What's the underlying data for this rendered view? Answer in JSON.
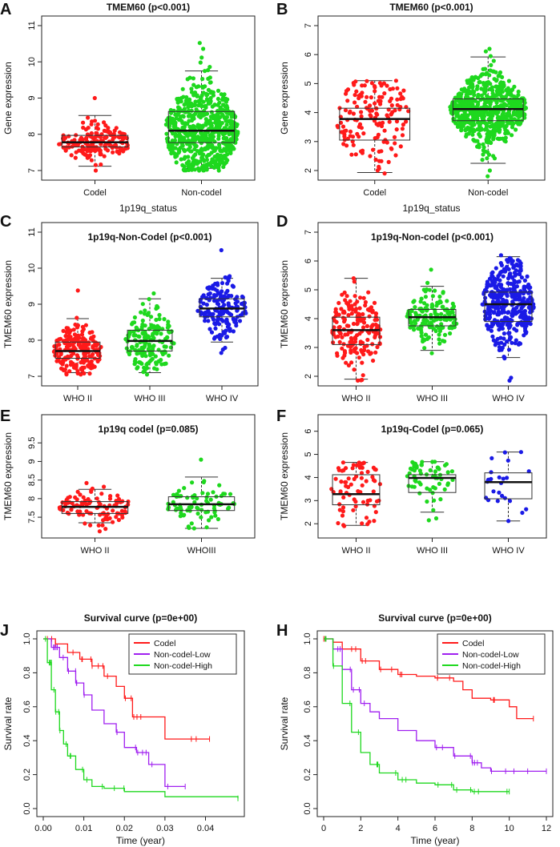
{
  "colors": {
    "red": "#ff1a1a",
    "green": "#1ed81e",
    "blue": "#1a1ae6",
    "purple": "#a020f0",
    "axis": "#222222"
  },
  "chart_data": [
    {
      "type": "scatter",
      "subtype": "beeswarm-boxplot",
      "panel": "A",
      "title": "TMEM60 (p<0.001)",
      "xlabel": "1p19q_status",
      "ylabel": "Gene expression",
      "ylim": [
        7,
        11
      ],
      "yticks": [
        7,
        8,
        9,
        10,
        11
      ],
      "categories": [
        "Codel",
        "Non-codel"
      ],
      "groups": [
        {
          "name": "Codel",
          "color": "red",
          "n": 170,
          "min": 7.0,
          "q1": 7.65,
          "median": 7.78,
          "q3": 7.97,
          "max": 9.0,
          "whisker_low": 7.12,
          "whisker_high": 8.52
        },
        {
          "name": "Non-codel",
          "color": "green",
          "n": 650,
          "min": 7.0,
          "q1": 7.77,
          "median": 8.1,
          "q3": 8.63,
          "max": 10.52,
          "whisker_low": 7.06,
          "whisker_high": 9.75
        }
      ]
    },
    {
      "type": "scatter",
      "subtype": "beeswarm-boxplot",
      "panel": "B",
      "title": "TMEM60 (p<0.001)",
      "xlabel": "1p19q_status",
      "ylabel": "Gene expression",
      "ylim": [
        2,
        7
      ],
      "yticks": [
        2,
        3,
        4,
        5,
        6,
        7
      ],
      "categories": [
        "Codel",
        "Non-codel"
      ],
      "groups": [
        {
          "name": "Codel",
          "color": "red",
          "n": 150,
          "min": 1.9,
          "q1": 3.05,
          "median": 3.78,
          "q3": 4.15,
          "max": 5.1,
          "whisker_low": 1.93,
          "whisker_high": 5.1
        },
        {
          "name": "Non-codel",
          "color": "green",
          "n": 620,
          "min": 1.8,
          "q1": 3.72,
          "median": 4.12,
          "q3": 4.47,
          "max": 6.2,
          "whisker_low": 2.25,
          "whisker_high": 5.92
        }
      ]
    },
    {
      "type": "scatter",
      "subtype": "beeswarm-boxplot",
      "panel": "C",
      "title": "1p19q-Non-Codel (p<0.001)",
      "xlabel": "",
      "ylabel": "TMEM60 expression",
      "ylim": [
        7,
        11
      ],
      "yticks": [
        7,
        8,
        9,
        10,
        11
      ],
      "categories": [
        "WHO II",
        "WHO III",
        "WHO IV"
      ],
      "groups": [
        {
          "name": "WHO II",
          "color": "red",
          "n": 200,
          "min": 7.05,
          "q1": 7.5,
          "median": 7.7,
          "q3": 7.95,
          "max": 9.38,
          "whisker_low": 7.1,
          "whisker_high": 8.6
        },
        {
          "name": "WHO III",
          "color": "green",
          "n": 180,
          "min": 7.05,
          "q1": 7.7,
          "median": 7.98,
          "q3": 8.28,
          "max": 9.3,
          "whisker_low": 7.1,
          "whisker_high": 9.15
        },
        {
          "name": "WHO IV",
          "color": "blue",
          "n": 170,
          "min": 7.65,
          "q1": 8.65,
          "median": 8.88,
          "q3": 9.15,
          "max": 10.5,
          "whisker_low": 7.95,
          "whisker_high": 9.72
        }
      ]
    },
    {
      "type": "scatter",
      "subtype": "beeswarm-boxplot",
      "panel": "D",
      "title": "1p19q-Non-codel (p<0.001)",
      "xlabel": "",
      "ylabel": "TMEM60 expression",
      "ylim": [
        2,
        7
      ],
      "yticks": [
        2,
        3,
        4,
        5,
        6,
        7
      ],
      "categories": [
        "WHO II",
        "WHO III",
        "WHO IV"
      ],
      "groups": [
        {
          "name": "WHO II",
          "color": "red",
          "n": 170,
          "min": 1.85,
          "q1": 3.1,
          "median": 3.6,
          "q3": 4.05,
          "max": 5.4,
          "whisker_low": 1.9,
          "whisker_high": 5.4
        },
        {
          "name": "WHO III",
          "color": "green",
          "n": 150,
          "min": 2.8,
          "q1": 3.75,
          "median": 4.05,
          "q3": 4.32,
          "max": 5.7,
          "whisker_low": 2.9,
          "whisker_high": 5.12
        },
        {
          "name": "WHO IV",
          "color": "blue",
          "n": 380,
          "min": 1.85,
          "q1": 3.9,
          "median": 4.5,
          "q3": 4.92,
          "max": 6.2,
          "whisker_low": 2.65,
          "whisker_high": 6.15
        }
      ]
    },
    {
      "type": "scatter",
      "subtype": "beeswarm-boxplot",
      "panel": "E",
      "title": "1p19q codel (p=0.085)",
      "xlabel": "",
      "ylabel": "TMEM60 expression",
      "ylim": [
        7.2,
        10.0
      ],
      "yticks": [
        7.5,
        8.0,
        8.5,
        9.0,
        9.5
      ],
      "categories": [
        "WHO II",
        "WHOIII"
      ],
      "groups": [
        {
          "name": "WHO II",
          "color": "red",
          "n": 100,
          "min": 7.12,
          "q1": 7.6,
          "median": 7.78,
          "q3": 7.92,
          "max": 8.42,
          "whisker_low": 7.35,
          "whisker_high": 8.25
        },
        {
          "name": "WHOIII",
          "color": "green",
          "n": 80,
          "min": 7.2,
          "q1": 7.68,
          "median": 7.85,
          "q3": 8.05,
          "max": 9.05,
          "whisker_low": 7.2,
          "whisker_high": 8.58
        }
      ]
    },
    {
      "type": "scatter",
      "subtype": "beeswarm-boxplot",
      "panel": "F",
      "title": "1p19q-Codel (p=0.065)",
      "xlabel": "",
      "ylabel": "TMEM60 expression",
      "ylim": [
        1.8,
        6.3
      ],
      "yticks": [
        2,
        3,
        4,
        5,
        6
      ],
      "categories": [
        "WHO II",
        "WHO III",
        "WHO IV"
      ],
      "groups": [
        {
          "name": "WHO II",
          "color": "red",
          "n": 70,
          "min": 1.9,
          "q1": 2.82,
          "median": 3.28,
          "q3": 4.12,
          "max": 4.65,
          "whisker_low": 1.93,
          "whisker_high": 4.65
        },
        {
          "name": "WHO III",
          "color": "green",
          "n": 60,
          "min": 2.15,
          "q1": 3.35,
          "median": 3.98,
          "q3": 4.12,
          "max": 4.68,
          "whisker_low": 2.5,
          "whisker_high": 4.68
        },
        {
          "name": "WHO IV",
          "color": "blue",
          "n": 22,
          "min": 2.12,
          "q1": 3.08,
          "median": 3.8,
          "q3": 4.2,
          "max": 5.1,
          "whisker_low": 2.12,
          "whisker_high": 5.1
        }
      ]
    },
    {
      "type": "line",
      "subtype": "kaplan-meier",
      "panel": "J",
      "title": "Survival curve (p=0e+00)",
      "xlabel": "Time (year)",
      "ylabel": "Survival rate",
      "xlim": [
        0,
        0.048
      ],
      "ylim": [
        0,
        1.0
      ],
      "xticks": [
        "0.00",
        "0.01",
        "0.02",
        "0.03",
        "0.04"
      ],
      "yticks": [
        "0.0",
        "0.2",
        "0.4",
        "0.6",
        "0.8",
        "1.0"
      ],
      "legend": [
        "Codel",
        "Non-codel-Low",
        "Non-codel-High"
      ],
      "legend_position": "top-right",
      "series": [
        {
          "name": "Codel",
          "color": "red",
          "x": [
            0,
            0.003,
            0.006,
            0.009,
            0.012,
            0.015,
            0.018,
            0.02,
            0.022,
            0.026,
            0.03,
            0.041
          ],
          "y": [
            1.0,
            0.97,
            0.92,
            0.88,
            0.84,
            0.78,
            0.72,
            0.65,
            0.54,
            0.54,
            0.41,
            0.41
          ]
        },
        {
          "name": "Non-codel-Low",
          "color": "purple",
          "x": [
            0,
            0.002,
            0.004,
            0.006,
            0.008,
            0.01,
            0.012,
            0.015,
            0.018,
            0.02,
            0.023,
            0.026,
            0.03,
            0.035
          ],
          "y": [
            1.0,
            0.95,
            0.89,
            0.81,
            0.74,
            0.67,
            0.58,
            0.5,
            0.45,
            0.36,
            0.33,
            0.26,
            0.13,
            0.13
          ]
        },
        {
          "name": "Non-codel-High",
          "color": "green",
          "x": [
            0,
            0.001,
            0.002,
            0.003,
            0.004,
            0.005,
            0.006,
            0.008,
            0.01,
            0.012,
            0.015,
            0.02,
            0.03,
            0.048
          ],
          "y": [
            1.0,
            0.86,
            0.7,
            0.57,
            0.46,
            0.38,
            0.31,
            0.23,
            0.17,
            0.13,
            0.12,
            0.1,
            0.07,
            0.06
          ]
        }
      ]
    },
    {
      "type": "line",
      "subtype": "kaplan-meier",
      "panel": "H",
      "title": "Survival curve (p=0e+00)",
      "xlabel": "Time (year)",
      "ylabel": "Survival rate",
      "xlim": [
        0,
        12
      ],
      "ylim": [
        0,
        1.0
      ],
      "xticks": [
        "0",
        "2",
        "4",
        "6",
        "8",
        "10",
        "12"
      ],
      "yticks": [
        "0.0",
        "0.2",
        "0.4",
        "0.6",
        "0.8",
        "1.0"
      ],
      "legend": [
        "Codel",
        "Non-codel-Low",
        "Non-codel-High"
      ],
      "legend_position": "top-right",
      "series": [
        {
          "name": "Codel",
          "color": "red",
          "x": [
            0,
            0.5,
            1,
            2,
            3,
            4,
            5,
            6,
            7,
            7.5,
            8,
            9,
            10,
            10.4,
            11.3
          ],
          "y": [
            1.0,
            0.98,
            0.94,
            0.87,
            0.82,
            0.79,
            0.78,
            0.77,
            0.75,
            0.7,
            0.65,
            0.64,
            0.6,
            0.53,
            0.53
          ]
        },
        {
          "name": "Non-codel-Low",
          "color": "purple",
          "x": [
            0,
            0.5,
            1,
            1.5,
            2,
            2.5,
            3,
            4,
            5,
            6,
            7,
            8,
            8.5,
            9,
            10,
            12
          ],
          "y": [
            1.0,
            0.94,
            0.82,
            0.7,
            0.62,
            0.57,
            0.53,
            0.46,
            0.4,
            0.36,
            0.31,
            0.27,
            0.24,
            0.22,
            0.22,
            0.22
          ]
        },
        {
          "name": "Non-codel-High",
          "color": "green",
          "x": [
            0,
            0.5,
            1,
            1.5,
            2,
            2.5,
            3,
            4,
            5,
            6,
            7,
            8,
            10
          ],
          "y": [
            1.0,
            0.84,
            0.62,
            0.45,
            0.33,
            0.26,
            0.21,
            0.17,
            0.15,
            0.14,
            0.11,
            0.1,
            0.1
          ]
        }
      ]
    }
  ]
}
